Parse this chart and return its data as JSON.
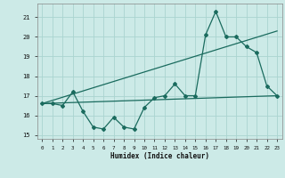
{
  "xlabel": "Humidex (Indice chaleur)",
  "xlim": [
    -0.5,
    23.5
  ],
  "ylim": [
    14.8,
    21.7
  ],
  "yticks": [
    15,
    16,
    17,
    18,
    19,
    20,
    21
  ],
  "xticks": [
    0,
    1,
    2,
    3,
    4,
    5,
    6,
    7,
    8,
    9,
    10,
    11,
    12,
    13,
    14,
    15,
    16,
    17,
    18,
    19,
    20,
    21,
    22,
    23
  ],
  "bg_color": "#cceae7",
  "line_color": "#1a6b5e",
  "grid_color": "#aad4d0",
  "line1_x": [
    0,
    1,
    2,
    3,
    4,
    5,
    6,
    7,
    8,
    9,
    10,
    11,
    12,
    13,
    14,
    15,
    16,
    17,
    18,
    19,
    20,
    21,
    22,
    23
  ],
  "line1_y": [
    16.6,
    16.6,
    16.5,
    17.2,
    16.2,
    15.4,
    15.3,
    15.9,
    15.4,
    15.3,
    16.4,
    16.9,
    17.0,
    17.6,
    17.0,
    17.0,
    20.1,
    21.3,
    20.0,
    20.0,
    19.5,
    19.2,
    17.5,
    17.0
  ],
  "line2_x": [
    0,
    23
  ],
  "line2_y": [
    16.6,
    17.0
  ],
  "line3_x": [
    0,
    23
  ],
  "line3_y": [
    16.6,
    20.3
  ]
}
